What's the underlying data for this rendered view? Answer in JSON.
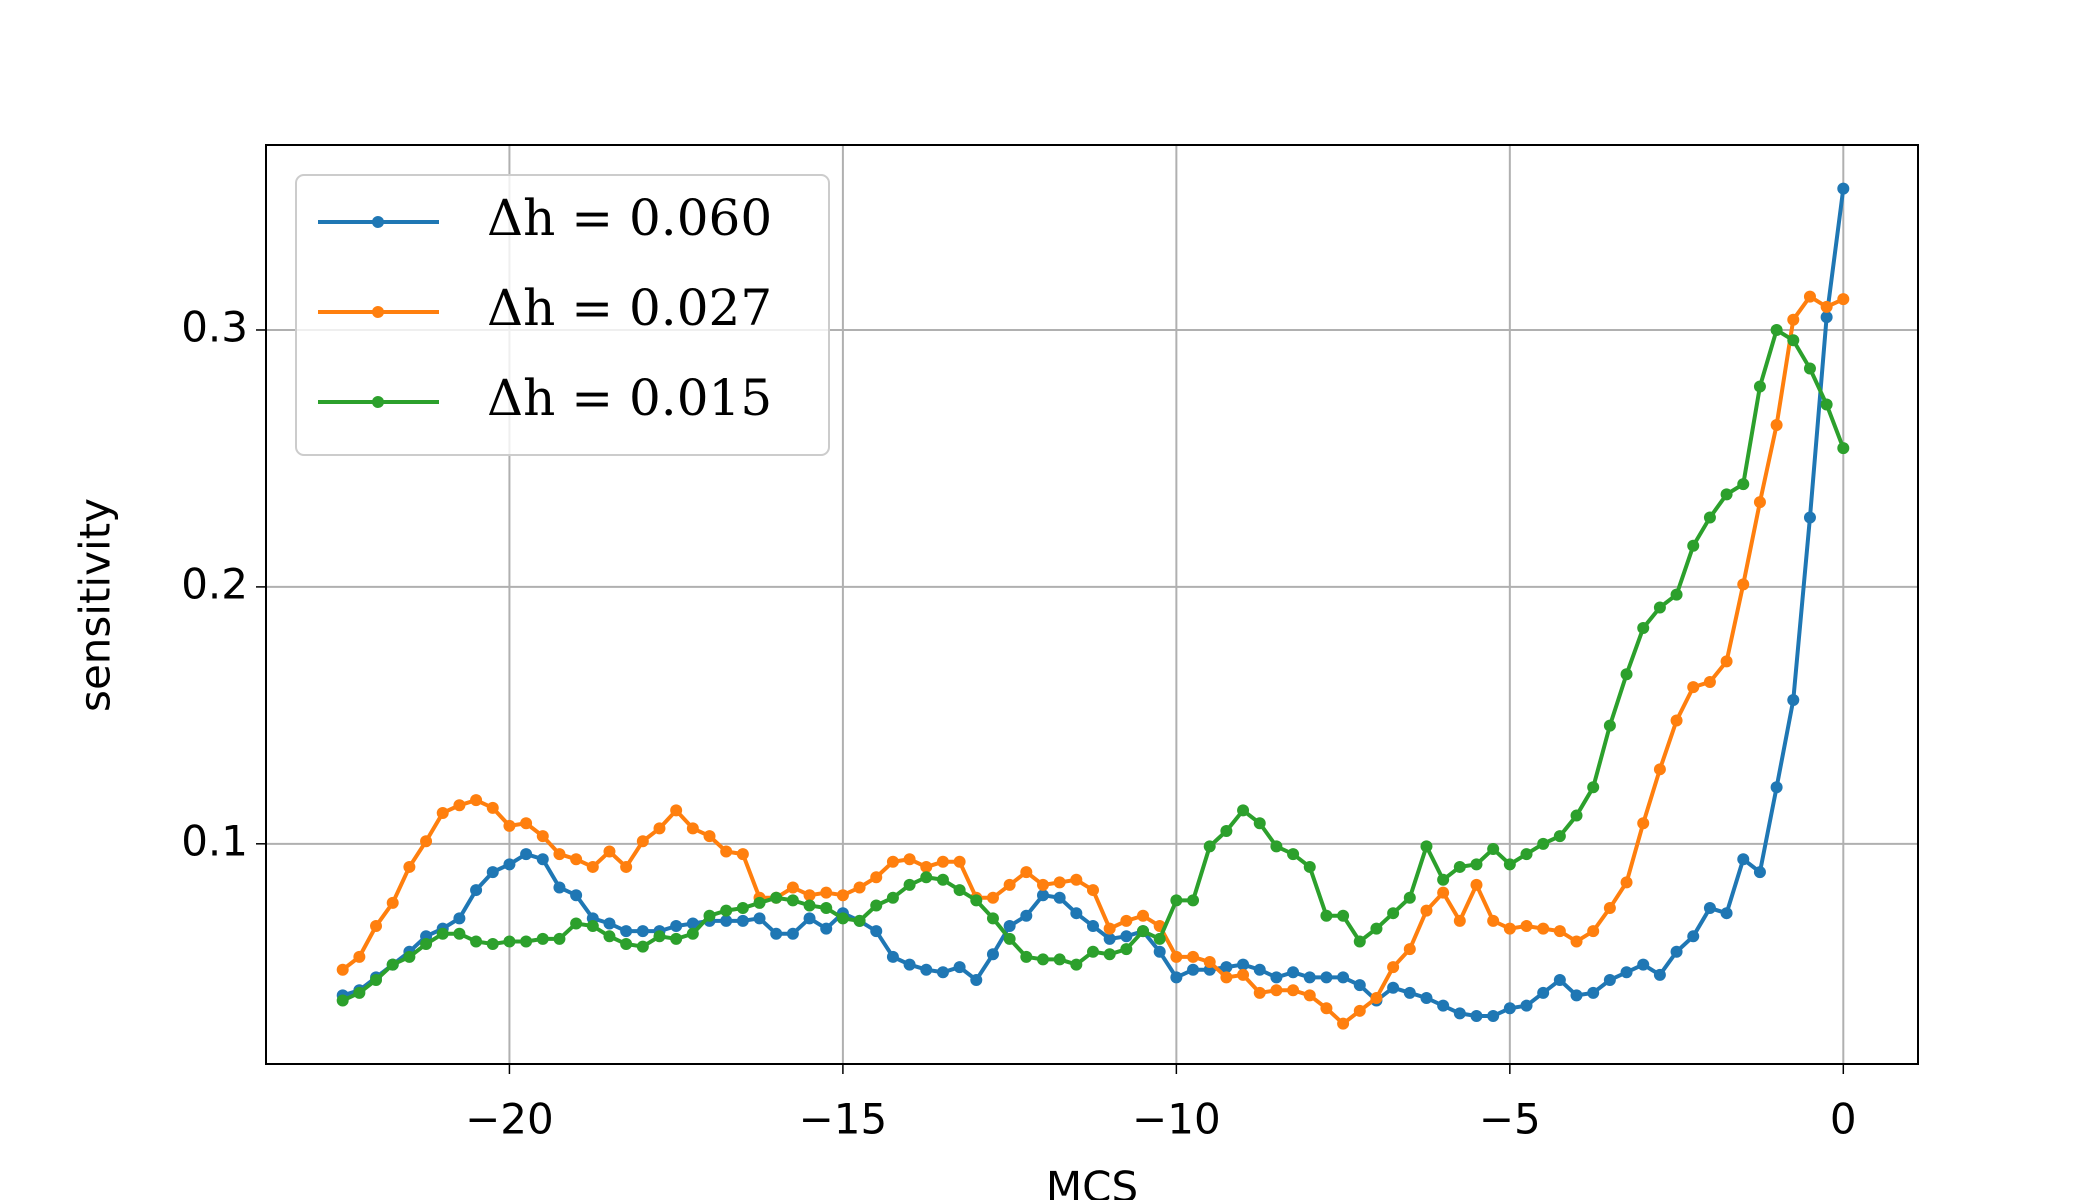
{
  "chart_data": {
    "type": "line",
    "xlabel": "MCS",
    "ylabel": "sensitivity",
    "x": [
      -22.5,
      -22.25,
      -22,
      -21.75,
      -21.5,
      -21.25,
      -21,
      -20.75,
      -20.5,
      -20.25,
      -20,
      -19.75,
      -19.5,
      -19.25,
      -19,
      -18.75,
      -18.5,
      -18.25,
      -18,
      -17.75,
      -17.5,
      -17.25,
      -17,
      -16.75,
      -16.5,
      -16.25,
      -16,
      -15.75,
      -15.5,
      -15.25,
      -15,
      -14.75,
      -14.5,
      -14.25,
      -14,
      -13.75,
      -13.5,
      -13.25,
      -13,
      -12.75,
      -12.5,
      -12.25,
      -12,
      -11.75,
      -11.5,
      -11.25,
      -11,
      -10.75,
      -10.5,
      -10.25,
      -10,
      -9.75,
      -9.5,
      -9.25,
      -9,
      -8.75,
      -8.5,
      -8.25,
      -8,
      -7.75,
      -7.5,
      -7.25,
      -7,
      -6.75,
      -6.5,
      -6.25,
      -6,
      -5.75,
      -5.5,
      -5.25,
      -5,
      -4.75,
      -4.5,
      -4.25,
      -4,
      -3.75,
      -3.5,
      -3.25,
      -3,
      -2.75,
      -2.5,
      -2.25,
      -2,
      -1.75,
      -1.5,
      -1.25,
      -1,
      -0.75,
      -0.5,
      -0.25,
      0
    ],
    "series": [
      {
        "name": "Δh = 0.060",
        "color": "#1f77b4",
        "values": [
          0.041,
          0.043,
          0.048,
          0.053,
          0.058,
          0.064,
          0.067,
          0.071,
          0.082,
          0.089,
          0.092,
          0.096,
          0.094,
          0.083,
          0.08,
          0.071,
          0.069,
          0.066,
          0.066,
          0.066,
          0.068,
          0.069,
          0.07,
          0.07,
          0.07,
          0.071,
          0.065,
          0.065,
          0.071,
          0.067,
          0.073,
          0.07,
          0.066,
          0.056,
          0.053,
          0.051,
          0.05,
          0.052,
          0.047,
          0.057,
          0.068,
          0.072,
          0.08,
          0.079,
          0.073,
          0.068,
          0.063,
          0.064,
          0.066,
          0.058,
          0.048,
          0.051,
          0.051,
          0.052,
          0.053,
          0.051,
          0.048,
          0.05,
          0.048,
          0.048,
          0.048,
          0.045,
          0.039,
          0.044,
          0.042,
          0.04,
          0.037,
          0.034,
          0.033,
          0.033,
          0.036,
          0.037,
          0.042,
          0.047,
          0.041,
          0.042,
          0.047,
          0.05,
          0.053,
          0.049,
          0.058,
          0.064,
          0.075,
          0.073,
          0.094,
          0.089,
          0.122,
          0.156,
          0.227,
          0.305,
          0.355
        ]
      },
      {
        "name": "Δh = 0.027",
        "color": "#ff7f0e",
        "values": [
          0.051,
          0.056,
          0.068,
          0.077,
          0.091,
          0.101,
          0.112,
          0.115,
          0.117,
          0.114,
          0.107,
          0.108,
          0.103,
          0.096,
          0.094,
          0.091,
          0.097,
          0.091,
          0.101,
          0.106,
          0.113,
          0.106,
          0.103,
          0.097,
          0.096,
          0.079,
          0.079,
          0.083,
          0.08,
          0.081,
          0.08,
          0.083,
          0.087,
          0.093,
          0.094,
          0.091,
          0.093,
          0.093,
          0.079,
          0.079,
          0.084,
          0.089,
          0.084,
          0.085,
          0.086,
          0.082,
          0.067,
          0.07,
          0.072,
          0.068,
          0.056,
          0.056,
          0.054,
          0.048,
          0.049,
          0.042,
          0.043,
          0.043,
          0.041,
          0.036,
          0.03,
          0.035,
          0.04,
          0.052,
          0.059,
          0.074,
          0.081,
          0.07,
          0.084,
          0.07,
          0.067,
          0.068,
          0.067,
          0.066,
          0.062,
          0.066,
          0.075,
          0.085,
          0.108,
          0.129,
          0.148,
          0.161,
          0.163,
          0.171,
          0.201,
          0.233,
          0.263,
          0.304,
          0.313,
          0.309,
          0.312
        ]
      },
      {
        "name": "Δh = 0.015",
        "color": "#2ca02c",
        "values": [
          0.039,
          0.042,
          0.047,
          0.053,
          0.056,
          0.061,
          0.065,
          0.065,
          0.062,
          0.061,
          0.062,
          0.062,
          0.063,
          0.063,
          0.069,
          0.068,
          0.064,
          0.061,
          0.06,
          0.064,
          0.063,
          0.065,
          0.072,
          0.074,
          0.075,
          0.077,
          0.079,
          0.078,
          0.076,
          0.075,
          0.071,
          0.07,
          0.076,
          0.079,
          0.084,
          0.087,
          0.086,
          0.082,
          0.078,
          0.071,
          0.063,
          0.056,
          0.055,
          0.055,
          0.053,
          0.058,
          0.057,
          0.059,
          0.066,
          0.063,
          0.078,
          0.078,
          0.099,
          0.105,
          0.113,
          0.108,
          0.099,
          0.096,
          0.091,
          0.072,
          0.072,
          0.062,
          0.067,
          0.073,
          0.079,
          0.099,
          0.086,
          0.091,
          0.092,
          0.098,
          0.092,
          0.096,
          0.1,
          0.103,
          0.111,
          0.122,
          0.146,
          0.166,
          0.184,
          0.192,
          0.197,
          0.216,
          0.227,
          0.236,
          0.24,
          0.278,
          0.3,
          0.296,
          0.285,
          0.271,
          0.254
        ]
      }
    ],
    "xlim": [
      -23.65,
      1.12
    ],
    "ylim": [
      0.0143,
      0.372
    ],
    "xticks": [
      {
        "value": -20,
        "label": "−20"
      },
      {
        "value": -15,
        "label": "−15"
      },
      {
        "value": -10,
        "label": "−10"
      },
      {
        "value": -5,
        "label": "−5"
      },
      {
        "value": 0,
        "label": "0"
      }
    ],
    "yticks": [
      0.1,
      0.2,
      0.3
    ],
    "grid": true,
    "legend": "upper left"
  }
}
